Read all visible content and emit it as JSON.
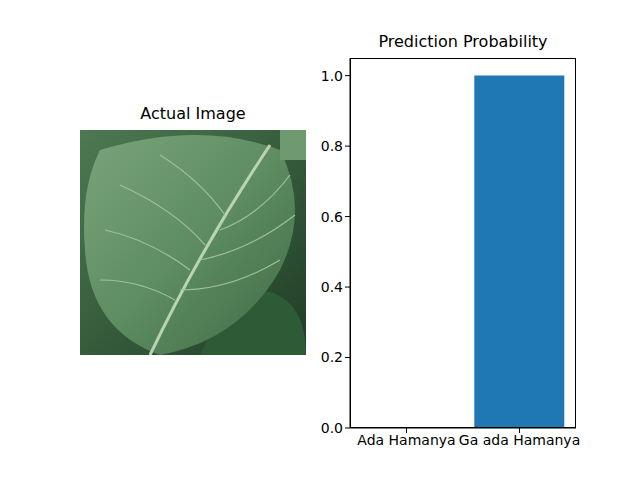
{
  "chart_data": [
    {
      "type": "image",
      "title": "Actual Image"
    },
    {
      "type": "bar",
      "title": "Prediction Probability",
      "categories": [
        "Ada Hamanya",
        "Ga ada Hamanya"
      ],
      "values": [
        0,
        1.0
      ],
      "color": "#1f77b4",
      "ylim": [
        0,
        1.05
      ],
      "yticks": [
        {
          "value": 0,
          "label": "0.0"
        },
        0.2,
        0.4,
        0.6,
        0.8,
        {
          "value": 1,
          "label": "1.0"
        }
      ],
      "grid": false
    }
  ]
}
